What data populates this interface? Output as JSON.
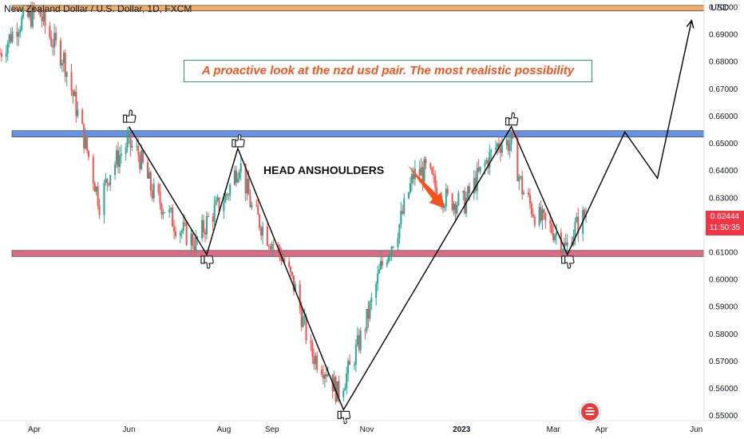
{
  "header": {
    "symbol_title": "New Zealand Dollar / U.S. Dollar, 1D, FXCM",
    "currency": "USD"
  },
  "annotations": {
    "callout_text": "A proactive look at the nzd usd pair.  The most realistic possibility",
    "pattern_label": "HEAD ANSHOULDERS"
  },
  "price_badge": {
    "price": "0.62444",
    "countdown": "11:50:35",
    "color": "#f23645"
  },
  "colors": {
    "up_candle": "#26a69a",
    "down_candle": "#ef5350",
    "resistance_top": "#f0a04b",
    "resistance_mid": "#4a7fe0",
    "support": "#d9506e",
    "arrow": "#f0551e",
    "pattern_line": "#000000"
  },
  "icons": [
    "thumbs-up-icon",
    "us-flag-icon"
  ],
  "chart_data": {
    "type": "candlestick",
    "title": "New Zealand Dollar / U.S. Dollar, 1D, FXCM",
    "ylabel": "USD",
    "ylim": [
      0.548,
      0.7025
    ],
    "xlim": [
      "2022-03-10",
      "2023-06-06"
    ],
    "grid": false,
    "y_ticks": [
      "0.70000",
      "0.69000",
      "0.68000",
      "0.67000",
      "0.66000",
      "0.65000",
      "0.64000",
      "0.63000",
      "0.62000",
      "0.61000",
      "0.60000",
      "0.59000",
      "0.58000",
      "0.57000",
      "0.56000",
      "0.55000"
    ],
    "x_ticks": [
      {
        "label": "Apr",
        "date": "2022-04-01"
      },
      {
        "label": "Jun",
        "date": "2022-06-01"
      },
      {
        "label": "Aug",
        "date": "2022-08-01"
      },
      {
        "label": "Sep",
        "date": "2022-09-01"
      },
      {
        "label": "Nov",
        "date": "2022-11-01"
      },
      {
        "label": "2023",
        "date": "2023-01-01"
      },
      {
        "label": "Mar",
        "date": "2023-03-01"
      },
      {
        "label": "Apr",
        "date": "2023-04-01"
      },
      {
        "label": "Jun",
        "date": "2023-06-01"
      }
    ],
    "close_path": [
      [
        "2022-03-10",
        0.683
      ],
      [
        "2022-03-22",
        0.694
      ],
      [
        "2022-04-04",
        0.698
      ],
      [
        "2022-04-12",
        0.688
      ],
      [
        "2022-04-20",
        0.681
      ],
      [
        "2022-04-28",
        0.663
      ],
      [
        "2022-05-06",
        0.645
      ],
      [
        "2022-05-13",
        0.628
      ],
      [
        "2022-05-20",
        0.64
      ],
      [
        "2022-05-31",
        0.65
      ],
      [
        "2022-06-07",
        0.646
      ],
      [
        "2022-06-16",
        0.632
      ],
      [
        "2022-06-24",
        0.626
      ],
      [
        "2022-07-01",
        0.62
      ],
      [
        "2022-07-14",
        0.613
      ],
      [
        "2022-07-22",
        0.622
      ],
      [
        "2022-08-03",
        0.631
      ],
      [
        "2022-08-11",
        0.643
      ],
      [
        "2022-08-19",
        0.626
      ],
      [
        "2022-08-29",
        0.616
      ],
      [
        "2022-09-08",
        0.608
      ],
      [
        "2022-09-16",
        0.596
      ],
      [
        "2022-09-26",
        0.573
      ],
      [
        "2022-10-07",
        0.566
      ],
      [
        "2022-10-13",
        0.558
      ],
      [
        "2022-10-21",
        0.567
      ],
      [
        "2022-11-01",
        0.585
      ],
      [
        "2022-11-10",
        0.604
      ],
      [
        "2022-11-22",
        0.62
      ],
      [
        "2022-12-01",
        0.638
      ],
      [
        "2022-12-09",
        0.64
      ],
      [
        "2022-12-16",
        0.633
      ],
      [
        "2022-12-23",
        0.629
      ],
      [
        "2023-01-03",
        0.628
      ],
      [
        "2023-01-10",
        0.636
      ],
      [
        "2023-01-18",
        0.644
      ],
      [
        "2023-01-25",
        0.65
      ],
      [
        "2023-02-02",
        0.65
      ],
      [
        "2023-02-09",
        0.633
      ],
      [
        "2023-02-17",
        0.624
      ],
      [
        "2023-02-24",
        0.62
      ],
      [
        "2023-03-03",
        0.617
      ],
      [
        "2023-03-09",
        0.611
      ],
      [
        "2023-03-14",
        0.618
      ],
      [
        "2023-03-22",
        0.624
      ]
    ],
    "levels": [
      {
        "name": "resistance-top",
        "from": 0.6985,
        "to": 0.7005,
        "color": "#f0a04b"
      },
      {
        "name": "resistance-mid",
        "from": 0.6522,
        "to": 0.6545,
        "color": "#4a7fe0"
      },
      {
        "name": "support",
        "from": 0.6083,
        "to": 0.6105,
        "color": "#d9506e"
      }
    ],
    "pattern_line": [
      [
        "2022-06-01",
        0.656
      ],
      [
        "2022-07-21",
        0.609
      ],
      [
        "2022-08-10",
        0.648
      ],
      [
        "2022-10-17",
        0.552
      ],
      [
        "2023-02-02",
        0.656
      ],
      [
        "2023-03-10",
        0.609
      ],
      [
        "2023-04-16",
        0.654
      ],
      [
        "2023-05-07",
        0.637
      ],
      [
        "2023-05-29",
        0.695
      ]
    ],
    "thumb_markers": [
      {
        "date": "2022-06-01",
        "value": 0.657,
        "direction": "up"
      },
      {
        "date": "2022-07-21",
        "value": 0.609,
        "direction": "down"
      },
      {
        "date": "2022-08-10",
        "value": 0.648,
        "direction": "up"
      },
      {
        "date": "2022-10-17",
        "value": 0.552,
        "direction": "down"
      },
      {
        "date": "2023-02-02",
        "value": 0.656,
        "direction": "up"
      },
      {
        "date": "2023-03-10",
        "value": 0.609,
        "direction": "down"
      }
    ],
    "arrow": {
      "from": [
        "2022-11-27",
        0.642
      ],
      "to": [
        "2022-12-21",
        0.626
      ]
    },
    "last_price": 0.62444
  }
}
